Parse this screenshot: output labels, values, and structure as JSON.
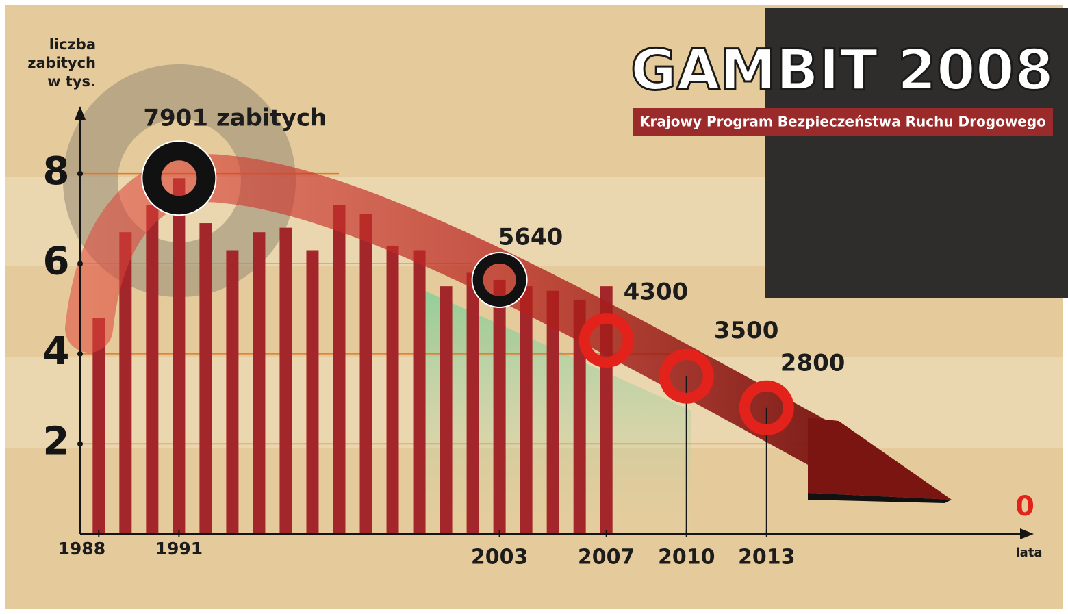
{
  "header": {
    "title": "GAMBIT 2008",
    "subtitle": "Krajowy Program Bezpieczeństwa Ruchu Drogowego"
  },
  "chart_data": {
    "type": "bar",
    "y_label": "liczba zabitych w tys.",
    "x_label": "lata",
    "end_label": "0",
    "x": [
      1988,
      1989,
      1990,
      1991,
      1992,
      1993,
      1994,
      1995,
      1996,
      1997,
      1998,
      1999,
      2000,
      2001,
      2002,
      2003,
      2004,
      2005,
      2006,
      2007
    ],
    "values": [
      4.8,
      6.7,
      7.3,
      7.9,
      6.9,
      6.3,
      6.7,
      6.8,
      6.3,
      7.3,
      7.1,
      6.4,
      6.3,
      5.5,
      5.8,
      5.64,
      5.5,
      5.4,
      5.2,
      5.5
    ],
    "color": "#a3262a",
    "targets": {
      "x": [
        1991,
        2003,
        2007,
        2010,
        2013
      ],
      "values": [
        7.901,
        5.64,
        4.3,
        3.5,
        2.8
      ],
      "value_labels": [
        "7901 zabitych",
        "5640",
        "4300",
        "3500",
        "2800"
      ],
      "colors": [
        "#111111",
        "#111111",
        "#e3231b",
        "#e3231b",
        "#e3231b"
      ]
    },
    "xlim": [
      1987.3,
      2023
    ],
    "xticks": [
      1988,
      1991,
      2003,
      2007,
      2010,
      2013
    ],
    "ylim": [
      0,
      9.5
    ],
    "yticks": [
      2,
      4,
      6,
      8
    ]
  }
}
